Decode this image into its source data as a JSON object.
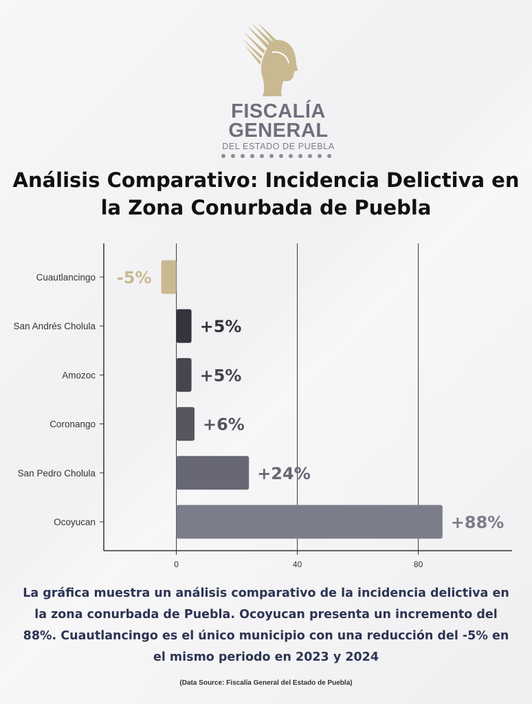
{
  "logo": {
    "line1": "FISCALÍA",
    "line2": "GENERAL",
    "line3": "DEL ESTADO DE PUEBLA",
    "icon": "helmeted-head-emblem",
    "color": "#c9b991"
  },
  "title": {
    "line1": "Análisis Comparativo: Incidencia Delictiva en",
    "line2": "la Zona Conurbada de Puebla"
  },
  "chart_data": {
    "type": "bar",
    "orientation": "horizontal",
    "title": "Análisis Comparativo: Incidencia Delictiva en la Zona Conurbada de Puebla",
    "xlabel": "",
    "ylabel": "",
    "categories": [
      "Cuautlancingo",
      "San Andrés Cholula",
      "Amozoc",
      "Coronango",
      "San Pedro Cholula",
      "Ocoyucan"
    ],
    "values": [
      -5,
      5,
      5,
      6,
      24,
      88
    ],
    "labels": [
      "-5%",
      "+5%",
      "+5%",
      "+6%",
      "+24%",
      "+88%"
    ],
    "colors": [
      "#c9b991",
      "#33343c",
      "#45464f",
      "#55565f",
      "#676874",
      "#7c7d8a"
    ],
    "label_colors": [
      "#c9b991",
      "#33343c",
      "#45464f",
      "#55565f",
      "#676874",
      "#7c7d8a"
    ],
    "xlim": [
      -24,
      111
    ],
    "xticks": [
      0,
      40,
      80
    ],
    "grid": "vertical"
  },
  "caption": "La gráfica muestra un análisis comparativo de la incidencia delictiva en la zona conurbada de Puebla. Ocoyucan presenta un incremento del 88%. Cuautlancingo es el único municipio con una reducción del -5% en el mismo periodo en 2023 y 2024",
  "source": "(Data Source: Fiscalía General del Estado de Puebla)"
}
